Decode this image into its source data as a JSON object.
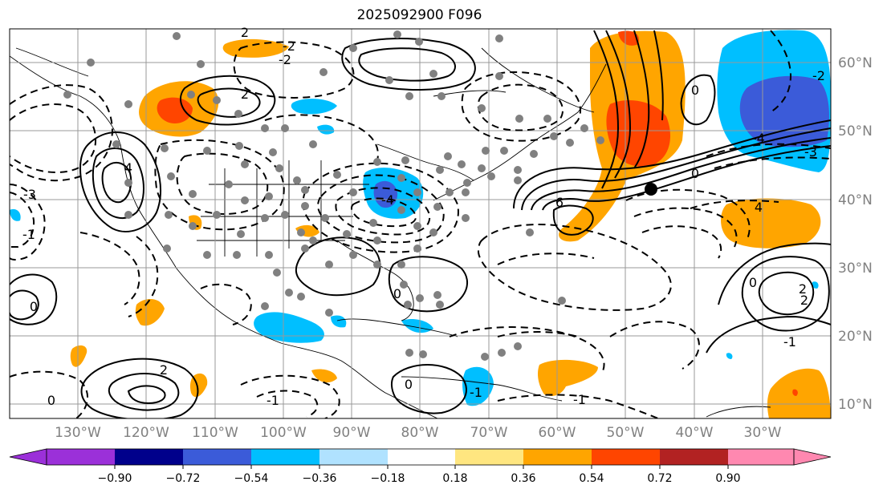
{
  "title": "2025092900 F096",
  "longitude_labels": [
    "130°W",
    "120°W",
    "110°W",
    "100°W",
    "90°W",
    "80°W",
    "70°W",
    "60°W",
    "50°W",
    "40°W",
    "30°W"
  ],
  "latitude_labels": [
    "60°N",
    "50°N",
    "40°N",
    "30°N",
    "20°N",
    "10°N"
  ],
  "colorbar": {
    "tick_labels": [
      "−0.90",
      "−0.72",
      "−0.54",
      "−0.36",
      "−0.18",
      "0.18",
      "0.36",
      "0.54",
      "0.72",
      "0.90"
    ],
    "colors": [
      "#9b30d9",
      "#00008b",
      "#3b5bd9",
      "#00bfff",
      "#b0e2ff",
      "#ffffff",
      "#ffe680",
      "#ffa500",
      "#ff4500",
      "#b22222",
      "#ff88b0"
    ]
  },
  "contour_labels": [
    "2",
    "4",
    "2",
    "-2",
    "0",
    "-1",
    "-4",
    "-3",
    "-1",
    "2",
    "0",
    "6",
    "0",
    "-2",
    "-4",
    "-3",
    "4",
    "2",
    "0",
    "2",
    "-2",
    "-1",
    "0",
    "0",
    "-1",
    "0",
    "-1"
  ],
  "marker_color": "#808080",
  "storm_marker_color": "#000000"
}
